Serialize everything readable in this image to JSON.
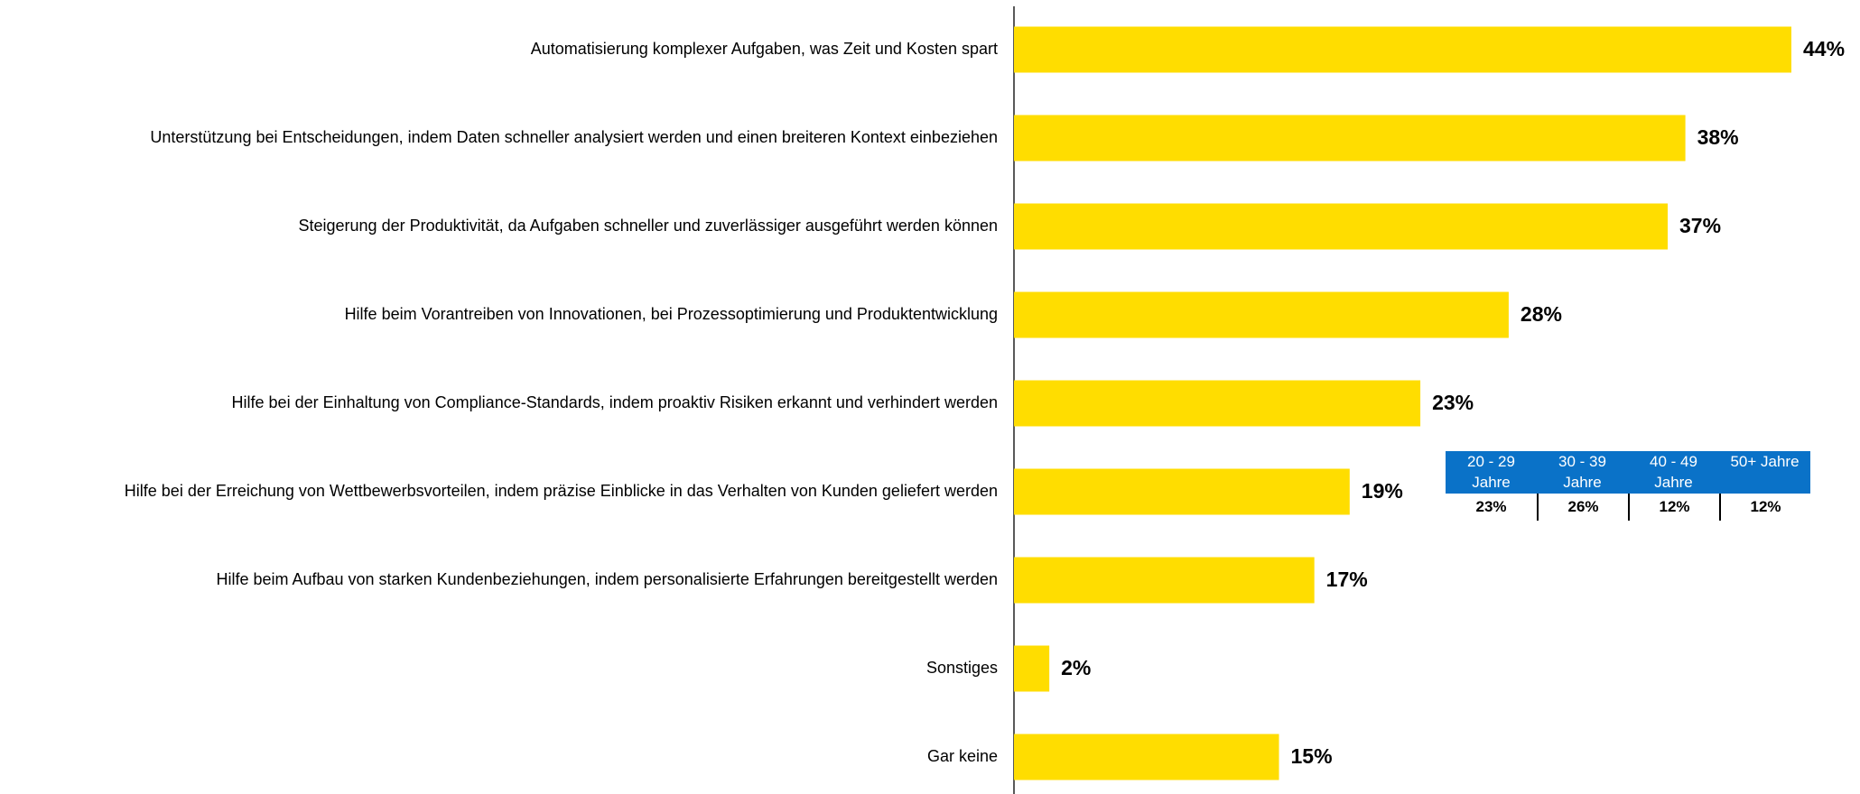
{
  "chart_data": {
    "type": "bar",
    "orientation": "horizontal",
    "categories": [
      "Automatisierung komplexer Aufgaben, was Zeit und Kosten spart",
      "Unterstützung bei Entscheidungen, indem Daten schneller analysiert werden und einen breiteren Kontext einbeziehen",
      "Steigerung der Produktivität, da Aufgaben schneller und zuverlässiger ausgeführt werden können",
      "Hilfe beim Vorantreiben von Innovationen, bei Prozessoptimierung und Produktentwicklung",
      "Hilfe bei der Einhaltung von Compliance-Standards, indem proaktiv Risiken erkannt und verhindert werden",
      "Hilfe bei der Erreichung von Wettbewerbsvorteilen, indem präzise Einblicke in das Verhalten von Kunden geliefert werden",
      "Hilfe beim Aufbau von starken Kundenbeziehungen, indem personalisierte Erfahrungen bereitgestellt werden",
      "Sonstiges",
      "Gar keine"
    ],
    "values": [
      44,
      38,
      37,
      28,
      23,
      19,
      17,
      2,
      15
    ],
    "value_labels": [
      "44%",
      "38%",
      "37%",
      "28%",
      "23%",
      "19%",
      "17%",
      "2%",
      "15%"
    ],
    "color": "#ffdd00",
    "inset": {
      "color": "#0a72c8",
      "categories": [
        "20 - 29 Jahre",
        "30 - 39 Jahre",
        "40 - 49 Jahre",
        "50+ Jahre"
      ],
      "values": [
        23,
        26,
        12,
        12
      ],
      "value_labels": [
        "23%",
        "26%",
        "12%",
        "12%"
      ]
    }
  }
}
